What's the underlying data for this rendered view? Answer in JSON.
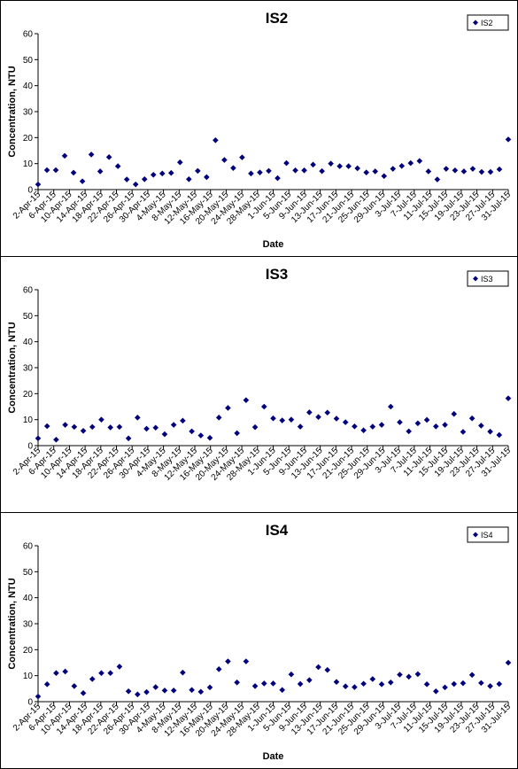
{
  "colors": {
    "marker": "#00007f",
    "axis": "#000000",
    "gridline": "#000000"
  },
  "chart_data": [
    {
      "type": "scatter",
      "title": "IS2",
      "xlabel": "Date",
      "ylabel": "Concentration, NTU",
      "ylim": [
        0,
        60
      ],
      "yticks": [
        "0",
        "10",
        "20",
        "30",
        "40",
        "50",
        "60"
      ],
      "legend": "top-right",
      "series": [
        {
          "name": "IS2",
          "marker": "diamond",
          "values": [
            2,
            7.5,
            7.5,
            13,
            6.5,
            3.2,
            13.5,
            7,
            12.5,
            9,
            3.9,
            2,
            4,
            5.7,
            6.2,
            6.4,
            10.5,
            4,
            7.2,
            4.8,
            19,
            11.4,
            8.3,
            12.4,
            6.2,
            6.6,
            7.2,
            4.4,
            10.2,
            7.4,
            7.4,
            9.6,
            7.1,
            10,
            9,
            9,
            8.2,
            6.6,
            7,
            5.2,
            8,
            9.1,
            10.2,
            11,
            7,
            3.9,
            8,
            7.4,
            7,
            8,
            6.8,
            6.8,
            7.8,
            19.3
          ]
        }
      ]
    },
    {
      "type": "scatter",
      "title": "IS3",
      "xlabel": "",
      "ylabel": "Concentration, NTU",
      "ylim": [
        0,
        60
      ],
      "yticks": [
        "0",
        "10",
        "20",
        "30",
        "40",
        "50",
        "60"
      ],
      "legend": "top-right",
      "series": [
        {
          "name": "IS3",
          "marker": "diamond",
          "values": [
            2.8,
            7.5,
            2.3,
            8,
            7.2,
            5.7,
            7.2,
            10,
            7,
            7.2,
            2.8,
            10.8,
            6.5,
            6.9,
            4.4,
            8,
            9.6,
            5.5,
            3.9,
            3,
            10.8,
            14.5,
            4.8,
            17.5,
            7.1,
            15,
            10.5,
            9.7,
            10,
            7.3,
            12.8,
            11,
            12.7,
            10.4,
            9,
            7.4,
            5.9,
            7.3,
            8,
            15,
            9,
            5.5,
            8.6,
            9.9,
            7.4,
            8,
            12.2,
            5.3,
            10.5,
            7.7,
            5.4,
            4.1,
            18.2
          ]
        }
      ]
    },
    {
      "type": "scatter",
      "title": "IS4",
      "xlabel": "Date",
      "ylabel": "Concentration, NTU",
      "ylim": [
        0,
        60
      ],
      "yticks": [
        "0",
        "10",
        "20",
        "30",
        "40",
        "50",
        "60"
      ],
      "legend": "top-right",
      "series": [
        {
          "name": "IS4",
          "marker": "diamond",
          "values": [
            2,
            6.7,
            11,
            11.6,
            6,
            3.3,
            8.7,
            11,
            11,
            13.5,
            4,
            2.8,
            3.7,
            5.6,
            4.3,
            4.3,
            11.2,
            4.5,
            3.8,
            5.5,
            12.5,
            15.5,
            7.4,
            15.5,
            6,
            7,
            7,
            4.5,
            10.5,
            6.8,
            8.3,
            13.3,
            12.2,
            7.6,
            5.9,
            5.6,
            6.9,
            8.7,
            6.7,
            7.4,
            10.4,
            9.6,
            10.6,
            6.7,
            4,
            5.5,
            6.8,
            7.1,
            10.3,
            7.2,
            6,
            6.8,
            15
          ]
        }
      ]
    }
  ],
  "date_labels": [
    "2-Apr-15",
    "6-Apr-15",
    "10-Apr-15",
    "14-Apr-15",
    "18-Apr-15",
    "22-Apr-15",
    "26-Apr-15",
    "30-Apr-15",
    "4-May-15",
    "8-May-15",
    "12-May-15",
    "16-May-15",
    "20-May-15",
    "24-May-15",
    "28-May-15",
    "1-Jun-15",
    "5-Jun-15",
    "9-Jun-15",
    "13-Jun-15",
    "17-Jun-15",
    "21-Jun-15",
    "25-Jun-15",
    "29-Jun-15",
    "3-Jul-15",
    "7-Jul-15",
    "11-Jul-15",
    "15-Jul-15",
    "19-Jul-15",
    "23-Jul-15",
    "27-Jul-15",
    "31-Jul-15"
  ]
}
